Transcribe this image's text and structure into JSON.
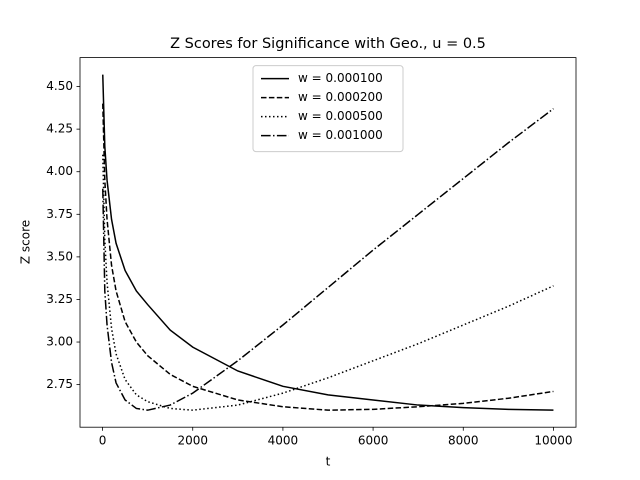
{
  "chart_data": {
    "type": "line",
    "title": "Z Scores for Significance with Geo., u = 0.5",
    "x_label": "t",
    "y_label": "Z score",
    "x": [
      5,
      50,
      100,
      200,
      300,
      500,
      750,
      1000,
      1500,
      2000,
      3000,
      4000,
      5000,
      6000,
      7000,
      8000,
      9000,
      10000
    ],
    "series": [
      {
        "name": "w = 0.000100",
        "color": "#000000",
        "style": "solid",
        "values": [
          4.57,
          4.15,
          3.95,
          3.72,
          3.58,
          3.42,
          3.3,
          3.22,
          3.07,
          2.97,
          2.83,
          2.74,
          2.69,
          2.66,
          2.63,
          2.615,
          2.605,
          2.6
        ]
      },
      {
        "name": "w = 0.000200",
        "color": "#000000",
        "style": "dashed",
        "values": [
          4.4,
          3.95,
          3.72,
          3.45,
          3.3,
          3.12,
          3.0,
          2.92,
          2.81,
          2.74,
          2.66,
          2.62,
          2.6,
          2.605,
          2.62,
          2.64,
          2.67,
          2.71
        ]
      },
      {
        "name": "w = 0.000500",
        "color": "#000000",
        "style": "dotted",
        "values": [
          4.1,
          3.6,
          3.35,
          3.08,
          2.93,
          2.78,
          2.69,
          2.65,
          2.61,
          2.6,
          2.63,
          2.7,
          2.79,
          2.89,
          2.99,
          3.1,
          3.21,
          3.33
        ]
      },
      {
        "name": "w = 0.001000",
        "color": "#000000",
        "style": "dashdot",
        "values": [
          3.9,
          3.3,
          3.1,
          2.88,
          2.76,
          2.66,
          2.61,
          2.6,
          2.63,
          2.7,
          2.89,
          3.1,
          3.32,
          3.54,
          3.75,
          3.96,
          4.17,
          4.37
        ]
      }
    ],
    "xlim": [
      -500,
      10500
    ],
    "ylim": [
      2.5,
      4.67
    ],
    "xticks": [
      0,
      2000,
      4000,
      6000,
      8000,
      10000
    ],
    "yticks": [
      2.75,
      {
        "value": 3.0,
        "label": "3.00"
      },
      3.25,
      {
        "value": 3.5,
        "label": "3.50"
      },
      3.75,
      {
        "value": 4.0,
        "label": "4.00"
      },
      4.25,
      {
        "value": 4.5,
        "label": "4.50"
      }
    ],
    "grid": false,
    "legend": "upper center"
  }
}
